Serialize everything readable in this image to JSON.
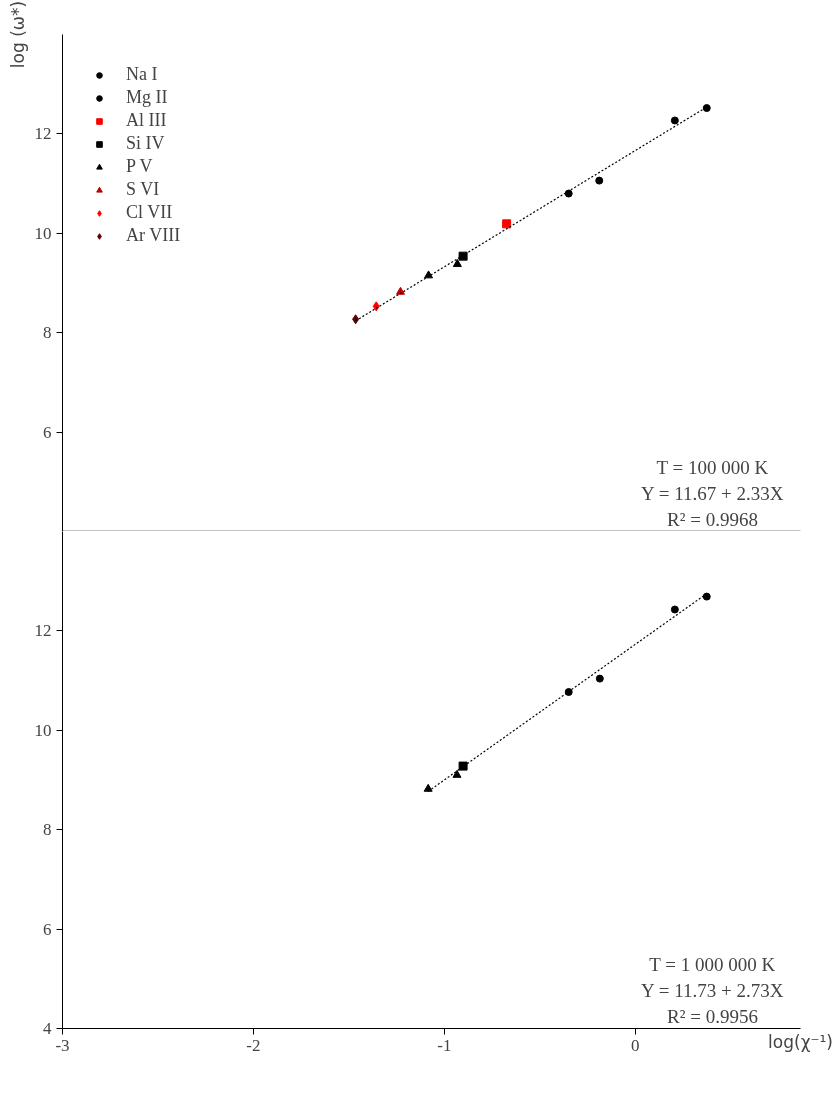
{
  "chart_data": [
    {
      "type": "scatter",
      "ylabel": "log (ω*)",
      "xlim": [
        -3,
        0.865
      ],
      "ylim": [
        4,
        14
      ],
      "yticks": [
        6,
        8,
        10,
        12
      ],
      "tick_labels": "y",
      "grid": false,
      "legend": "top left",
      "series": [
        {
          "name": "Na I",
          "color": "#000000",
          "marker": "circle",
          "x": [
            0.207,
            0.374
          ],
          "values": [
            12.27,
            12.52
          ]
        },
        {
          "name": "Mg II",
          "color": "#000000",
          "marker": "circle",
          "x": [
            -0.349,
            -0.189
          ],
          "values": [
            10.8,
            11.06
          ]
        },
        {
          "name": "Al III",
          "color": "#ff0000",
          "marker": "square",
          "x": [
            -0.674
          ],
          "values": [
            10.19
          ]
        },
        {
          "name": "Si IV",
          "color": "#000000",
          "marker": "square",
          "x": [
            -0.902
          ],
          "values": [
            9.54
          ]
        },
        {
          "name": "P V",
          "color": "#000000",
          "marker": "triangle",
          "x": [
            -1.083,
            -0.932
          ],
          "values": [
            9.15,
            9.38
          ]
        },
        {
          "name": "S VI",
          "color": "#c00000",
          "marker": "triangle",
          "x": [
            -1.23
          ],
          "values": [
            8.82
          ]
        },
        {
          "name": "Cl VII",
          "color": "#ff0000",
          "marker": "diamond",
          "x": [
            -1.357
          ],
          "values": [
            8.53
          ]
        },
        {
          "name": "Ar VIII",
          "color": "#600000",
          "marker": "diamond",
          "x": [
            -1.465
          ],
          "values": [
            8.27
          ]
        },
        {
          "type": "line",
          "color": "#000000",
          "line_style": "dotted",
          "x": [
            -1.465,
            0.374
          ],
          "values": [
            8.24,
            12.54
          ]
        }
      ],
      "annotations": [
        "T = 100 000 K",
        "Y = 11.67 + 2.33X",
        "R² = 0.9968"
      ]
    },
    {
      "type": "scatter",
      "xlabel": "log(χ⁻¹)",
      "xlim": [
        -3,
        0.865
      ],
      "ylim": [
        4,
        14
      ],
      "yticks": [
        4,
        6,
        8,
        10,
        12
      ],
      "xticks": [
        -3,
        -2,
        -1,
        0
      ],
      "grid": false,
      "series": [
        {
          "color": "#000000",
          "marker": "circle",
          "x": [
            0.207,
            0.374
          ],
          "values": [
            12.43,
            12.69
          ]
        },
        {
          "color": "#000000",
          "marker": "circle",
          "x": [
            -0.349,
            -0.186
          ],
          "values": [
            10.77,
            11.04
          ]
        },
        {
          "color": "#000000",
          "marker": "square",
          "x": [
            -0.902
          ],
          "values": [
            9.28
          ]
        },
        {
          "color": "#000000",
          "marker": "triangle",
          "x": [
            -1.085,
            -0.934
          ],
          "values": [
            8.82,
            9.1
          ]
        },
        {
          "type": "line",
          "color": "#000000",
          "line_style": "dotted",
          "x": [
            -1.085,
            0.374
          ],
          "values": [
            8.77,
            12.75
          ]
        }
      ],
      "annotations": [
        "T = 1 000 000 K",
        "Y = 11.73 + 2.73X",
        "R² = 0.9956"
      ]
    }
  ]
}
